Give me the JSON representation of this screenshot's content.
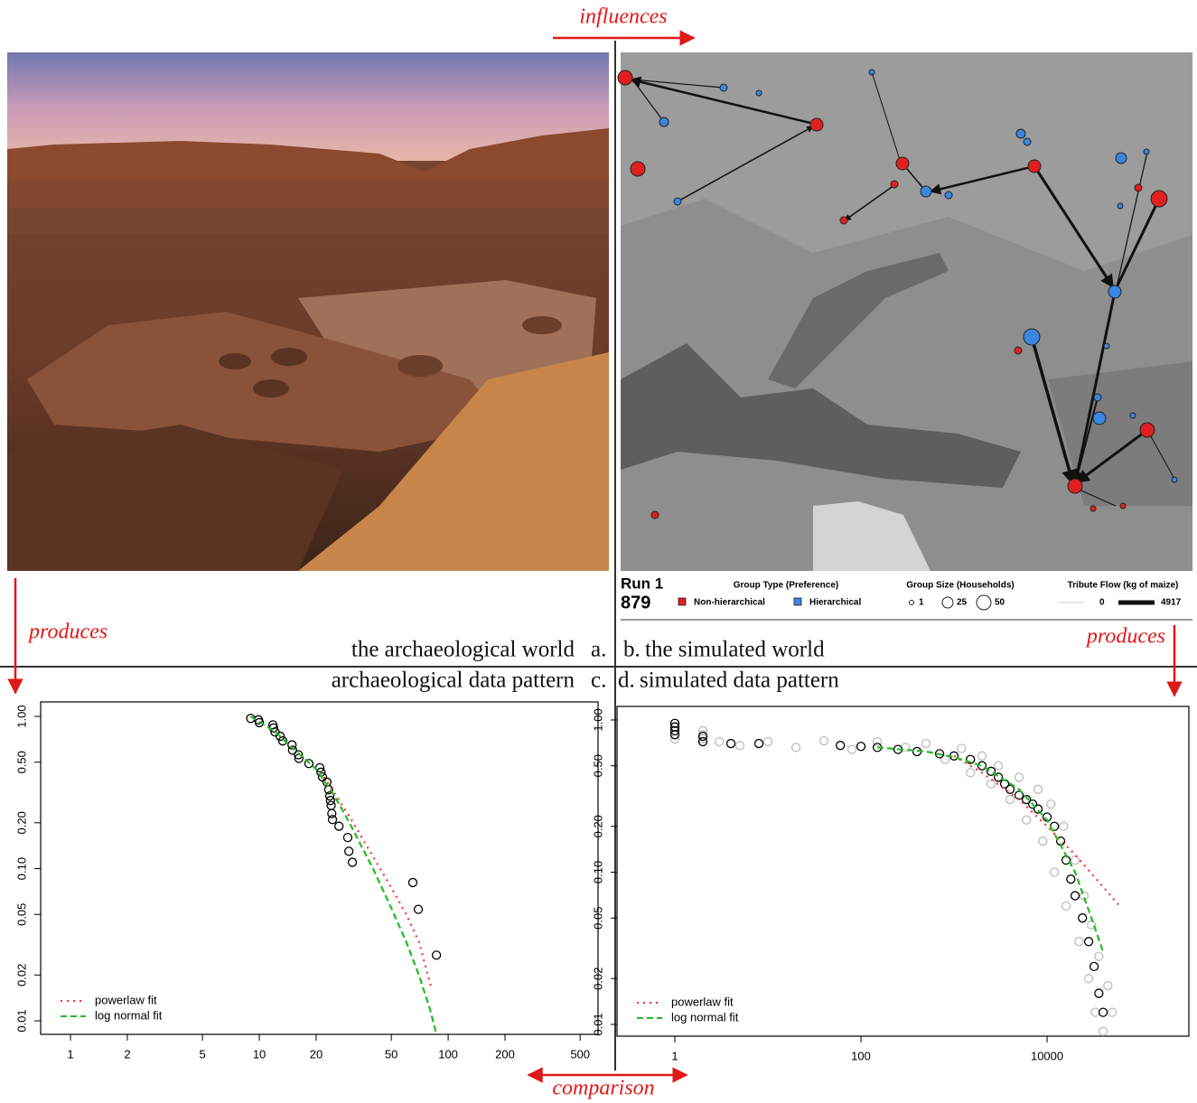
{
  "arrows": {
    "top": "influences",
    "left": "produces",
    "right": "produces",
    "bottom": "comparison"
  },
  "panels": [
    {
      "letter": "a.",
      "title": "the archaeological world"
    },
    {
      "letter": "b.",
      "title": "the simulated world"
    },
    {
      "letter": "c.",
      "title": "archaeological data pattern"
    },
    {
      "letter": "d.",
      "title": "simulated data pattern"
    }
  ],
  "map_legend": {
    "run_label": "Run 1",
    "run_step": "879",
    "group_type": {
      "title": "Group Type (Preference)",
      "items": [
        "Non-hierarchical",
        "Hierarchical"
      ],
      "colors": [
        "#e02020",
        "#3a86e0"
      ]
    },
    "group_size": {
      "title": "Group Size (Households)",
      "items": [
        "1",
        "25",
        "50"
      ]
    },
    "tribute_flow": {
      "title": "Tribute Flow (kg of maize)",
      "items": [
        "0",
        "4917"
      ]
    }
  },
  "chart_data": [
    {
      "type": "scatter",
      "log_x": true,
      "log_y": true,
      "xlim": [
        0.695,
        622
      ],
      "ylim": [
        0.00815,
        1.245
      ],
      "xticks": [
        1,
        2,
        5,
        10,
        20,
        50,
        100,
        200,
        500
      ],
      "yticks": [
        {
          "value": 1,
          "label": "1.00"
        },
        {
          "value": 0.5,
          "label": "0.50"
        },
        {
          "value": 0.2,
          "label": "0.20"
        },
        {
          "value": 0.1,
          "label": "0.10"
        },
        {
          "value": 0.05,
          "label": "0.05"
        },
        {
          "value": 0.02,
          "label": "0.02"
        },
        {
          "value": 0.01,
          "label": "0.01"
        }
      ],
      "points": {
        "color": "#000000",
        "x": [
          9.0,
          9.9,
          10.0,
          11.8,
          11.9,
          12.1,
          12.9,
          13.3,
          14.9,
          15.0,
          16.1,
          16.2,
          18.3,
          20.9,
          21.2,
          21.6,
          22.8,
          23.3,
          23.6,
          23.8,
          24.0,
          24.2,
          24.4,
          26.4,
          29.4,
          29.8,
          31.1,
          65.0,
          69.5,
          86.7
        ],
        "y": [
          0.97,
          0.95,
          0.91,
          0.88,
          0.84,
          0.79,
          0.74,
          0.69,
          0.65,
          0.6,
          0.56,
          0.53,
          0.49,
          0.46,
          0.43,
          0.4,
          0.37,
          0.33,
          0.3,
          0.28,
          0.26,
          0.23,
          0.21,
          0.19,
          0.16,
          0.13,
          0.11,
          0.081,
          0.054,
          0.027
        ]
      },
      "series": [
        {
          "name": "powerlaw fit",
          "color": "#ff3030",
          "style": "dotted",
          "x": [
            22,
            30,
            40,
            50,
            60,
            70,
            82
          ],
          "y": [
            0.4,
            0.22,
            0.12,
            0.075,
            0.05,
            0.033,
            0.016
          ]
        },
        {
          "name": "log normal fit",
          "color": "#22bb22",
          "style": "dashed",
          "x": [
            9,
            12,
            15,
            20,
            25,
            30,
            40,
            50,
            60,
            70,
            80,
            86
          ],
          "y": [
            1.0,
            0.8,
            0.62,
            0.45,
            0.3,
            0.2,
            0.1,
            0.055,
            0.033,
            0.02,
            0.012,
            0.0085
          ]
        }
      ]
    },
    {
      "type": "scatter",
      "log_x": true,
      "log_y": true,
      "xlim": [
        0.239,
        334000
      ],
      "ylim": [
        0.00837,
        1.227
      ],
      "xticks": [
        1,
        100,
        10000
      ],
      "yticks": [
        {
          "value": 1,
          "label": "1.00"
        },
        {
          "value": 0.5,
          "label": "0.50"
        },
        {
          "value": 0.2,
          "label": "0.20"
        },
        {
          "value": 0.1,
          "label": "0.10"
        },
        {
          "value": 0.05,
          "label": "0.05"
        },
        {
          "value": 0.02,
          "label": "0.02"
        },
        {
          "value": 0.01,
          "label": "0.01"
        }
      ],
      "cloud": {
        "color": "#bbbbbb",
        "x": [
          1,
          1,
          1,
          1,
          2,
          2,
          2,
          3,
          5,
          10,
          20,
          40,
          80,
          150,
          300,
          500,
          800,
          1200,
          1500,
          2000,
          2500,
          3000,
          4000,
          5000,
          6000,
          8000,
          9000,
          11000,
          12000,
          15000,
          16000,
          20000,
          22000,
          25000,
          28000,
          30000,
          33000,
          36000,
          40000,
          45000,
          50000
        ],
        "y": [
          0.9,
          0.85,
          0.8,
          0.75,
          0.85,
          0.8,
          0.75,
          0.72,
          0.68,
          0.72,
          0.66,
          0.73,
          0.64,
          0.72,
          0.66,
          0.7,
          0.55,
          0.65,
          0.45,
          0.58,
          0.38,
          0.5,
          0.3,
          0.42,
          0.22,
          0.35,
          0.16,
          0.28,
          0.1,
          0.2,
          0.06,
          0.12,
          0.035,
          0.07,
          0.02,
          0.045,
          0.012,
          0.028,
          0.009,
          0.018,
          0.012
        ]
      },
      "points": {
        "color": "#000000",
        "x": [
          1,
          1,
          1,
          1,
          2,
          2,
          4,
          8,
          60,
          100,
          150,
          250,
          400,
          700,
          1000,
          1500,
          2000,
          2500,
          3000,
          3500,
          4000,
          5000,
          6000,
          7000,
          8000,
          10000,
          12000,
          14000,
          16000,
          18000,
          20000,
          24000,
          28000,
          32000,
          36000,
          40000
        ],
        "y": [
          0.95,
          0.9,
          0.85,
          0.8,
          0.78,
          0.72,
          0.7,
          0.7,
          0.68,
          0.67,
          0.66,
          0.64,
          0.62,
          0.6,
          0.58,
          0.55,
          0.5,
          0.46,
          0.42,
          0.38,
          0.35,
          0.32,
          0.3,
          0.28,
          0.26,
          0.23,
          0.2,
          0.16,
          0.12,
          0.09,
          0.07,
          0.05,
          0.035,
          0.024,
          0.016,
          0.012
        ]
      },
      "series": [
        {
          "name": "powerlaw fit",
          "color": "#ff3030",
          "style": "dotted",
          "x": [
            1000,
            2000,
            5000,
            10000,
            20000,
            40000,
            60000
          ],
          "y": [
            0.58,
            0.45,
            0.3,
            0.2,
            0.13,
            0.08,
            0.06
          ]
        },
        {
          "name": "log normal fit",
          "color": "#22bb22",
          "style": "dashed",
          "x": [
            150,
            500,
            1000,
            2000,
            5000,
            10000,
            20000,
            30000,
            40000
          ],
          "y": [
            0.66,
            0.62,
            0.57,
            0.5,
            0.35,
            0.22,
            0.1,
            0.05,
            0.03
          ]
        }
      ]
    }
  ]
}
